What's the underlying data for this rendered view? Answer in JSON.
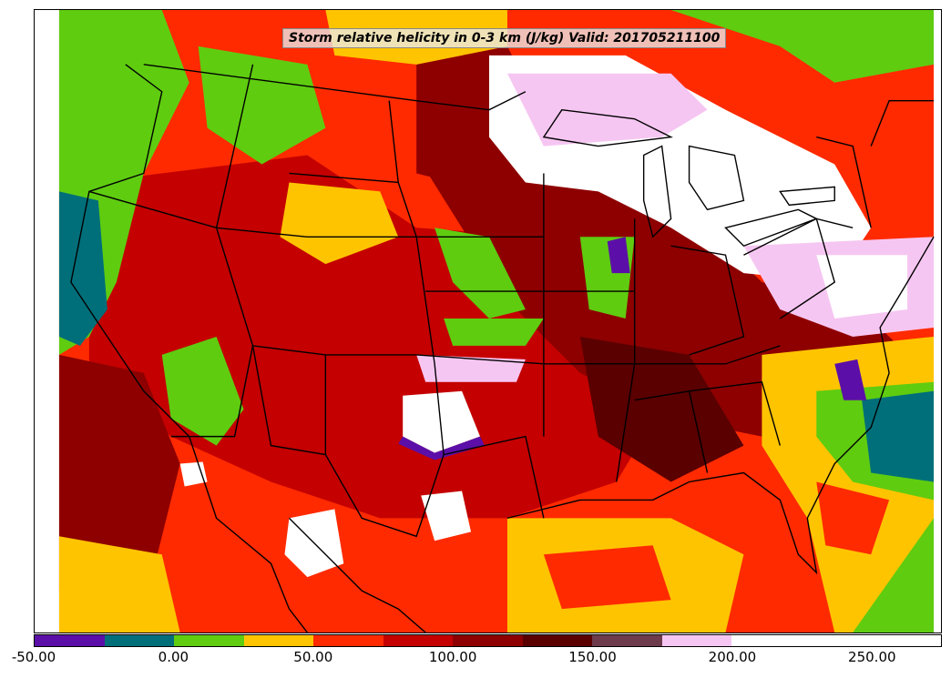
{
  "title": "Storm relative helicity in 0-3 km (J/kg) Valid: 201705211100",
  "colorbar": {
    "colors": [
      "#5b0fa8",
      "#006f7a",
      "#5fcc10",
      "#ffc400",
      "#ff2a00",
      "#c40000",
      "#8e0000",
      "#5a0000",
      "#6e3b4c",
      "#f6c6f2",
      "#ffffff"
    ],
    "bins": [
      -50,
      -25,
      0,
      25,
      50,
      75,
      100,
      125,
      150,
      175,
      200,
      225,
      250,
      275
    ],
    "tick_values": [
      -50,
      0,
      50,
      100,
      150,
      200,
      250
    ],
    "tick_labels": [
      "-50.00",
      "0.00",
      "50.00",
      "100.00",
      "150.00",
      "200.00",
      "250.00"
    ]
  }
}
